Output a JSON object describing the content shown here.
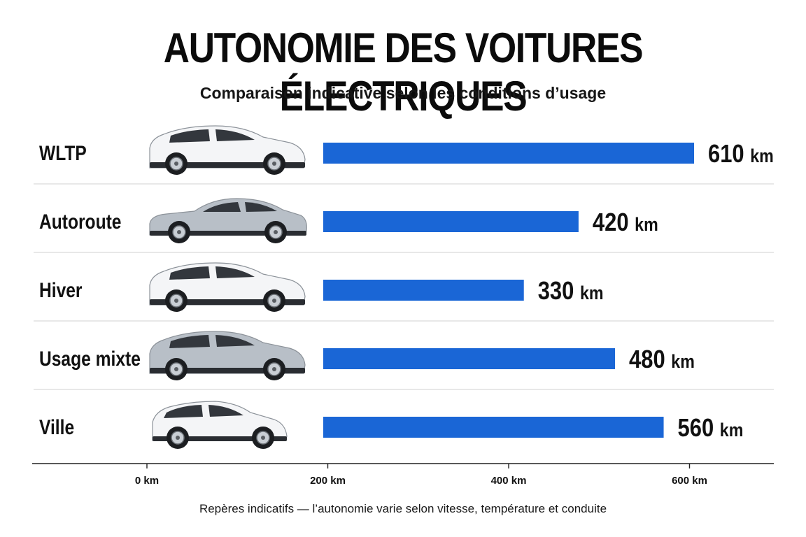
{
  "header": {
    "title": "AUTONOMIE DES VOITURES ÉLECTRIQUES",
    "subtitle": "Comparaison indicative selon les conditions d’usage"
  },
  "footer": {
    "note": "Repères indicatifs — l’autonomie varie selon vitesse, température et conduite"
  },
  "colors": {
    "bar": "#1a66d6",
    "divider": "#d9d9d9",
    "axis": "#222222",
    "car_white": "#f4f5f7",
    "car_silver": "#b8bfc7"
  },
  "chart_data": {
    "type": "bar",
    "orientation": "horizontal",
    "categories": [
      "WLTP",
      "Autoroute",
      "Hiver",
      "Usage mixte",
      "Ville"
    ],
    "values": [
      610,
      420,
      330,
      480,
      560
    ],
    "value_unit": "km",
    "xticks": [
      0,
      200,
      400,
      600
    ],
    "xtick_labels": [
      "0 km",
      "200 km",
      "400 km",
      "600 km"
    ],
    "car_icons": [
      "white-suv-icon",
      "silver-sedan-icon",
      "white-suv-icon",
      "silver-suv-icon",
      "white-hatchback-icon"
    ],
    "car_colors": [
      "white",
      "silver",
      "white",
      "silver",
      "white"
    ],
    "grid": false,
    "legend": "none"
  }
}
